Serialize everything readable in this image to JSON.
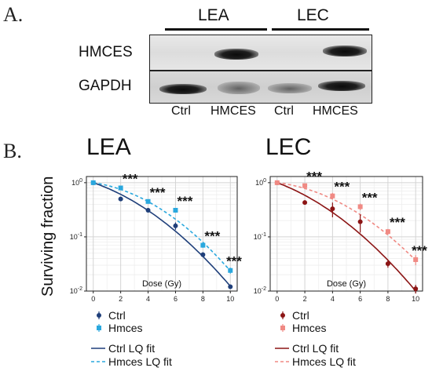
{
  "panel_a": {
    "letter": "A.",
    "groups": [
      "LEA",
      "LEC"
    ],
    "rows": [
      "HMCES",
      "GAPDH"
    ],
    "lanes": [
      "Ctrl",
      "HMCES",
      "Ctrl",
      "HMCES"
    ]
  },
  "panel_b": {
    "letter": "B.",
    "ylabel": "Surviving fraction"
  },
  "chart_data": [
    {
      "type": "scatter",
      "title": "LEA",
      "xlabel": "Dose (Gy)",
      "ylabel": "Surviving fraction",
      "yscale": "log",
      "xlim": [
        -0.5,
        10.5
      ],
      "ylim": [
        0.01,
        1.3
      ],
      "xticks": [
        0,
        2,
        4,
        6,
        8,
        10
      ],
      "yticks": [
        {
          "value": 1,
          "base": "10",
          "exp": "0"
        },
        {
          "value": 0.1,
          "base": "10",
          "exp": "-1"
        },
        {
          "value": 0.01,
          "base": "10",
          "exp": "-2"
        }
      ],
      "grid": true,
      "series": [
        {
          "name": "Ctrl",
          "color": "#1f3f7a",
          "marker": "circle",
          "x": [
            0,
            2,
            4,
            6,
            8,
            10
          ],
          "y": [
            1.0,
            0.5,
            0.31,
            0.16,
            0.047,
            0.012
          ],
          "err": [
            0.02,
            0.03,
            0.03,
            0.025,
            0.005,
            0.001
          ]
        },
        {
          "name": "Hmces",
          "color": "#2aa8de",
          "marker": "square",
          "x": [
            0,
            2,
            4,
            6,
            8,
            10
          ],
          "y": [
            1.0,
            0.8,
            0.45,
            0.31,
            0.07,
            0.024
          ],
          "err": [
            0.03,
            0.04,
            0.04,
            0.02,
            0.007,
            0.003
          ]
        }
      ],
      "fits": [
        {
          "name": "Ctrl LQ fit",
          "color": "#1f3f7a",
          "dash": false,
          "alpha": 0.2,
          "beta": 0.024
        },
        {
          "name": "Hmces LQ fit",
          "color": "#2aa8de",
          "dash": true,
          "alpha": 0.085,
          "beta": 0.029
        }
      ],
      "annotations": [
        {
          "x": 2,
          "y": 0.8,
          "text": "***"
        },
        {
          "x": 4,
          "y": 0.45,
          "text": "***"
        },
        {
          "x": 6,
          "y": 0.31,
          "text": "***"
        },
        {
          "x": 8,
          "y": 0.07,
          "text": "***"
        },
        {
          "x": 10,
          "y": 0.024,
          "text": "***"
        }
      ]
    },
    {
      "type": "scatter",
      "title": "LEC",
      "xlabel": "Dose (Gy)",
      "ylabel": "Surviving fraction",
      "yscale": "log",
      "xlim": [
        -0.5,
        10.5
      ],
      "ylim": [
        0.01,
        1.3
      ],
      "xticks": [
        0,
        2,
        4,
        6,
        8,
        10
      ],
      "yticks": [
        {
          "value": 1,
          "base": "10",
          "exp": "0"
        },
        {
          "value": 0.1,
          "base": "10",
          "exp": "-1"
        },
        {
          "value": 0.01,
          "base": "10",
          "exp": "-2"
        }
      ],
      "grid": true,
      "series": [
        {
          "name": "Ctrl",
          "color": "#8c1515",
          "marker": "circle",
          "x": [
            0,
            2,
            4,
            6,
            8,
            10
          ],
          "y": [
            1.0,
            0.43,
            0.33,
            0.19,
            0.032,
            0.011
          ],
          "err": [
            0.02,
            0.03,
            0.1,
            0.07,
            0.005,
            0.002
          ]
        },
        {
          "name": "Hmces",
          "color": "#f08a84",
          "marker": "square",
          "x": [
            0,
            2,
            4,
            6,
            8,
            10
          ],
          "y": [
            1.0,
            0.88,
            0.57,
            0.36,
            0.125,
            0.038
          ],
          "err": [
            0.03,
            0.04,
            0.08,
            0.05,
            0.015,
            0.008
          ]
        }
      ],
      "fits": [
        {
          "name": "Ctrl LQ fit",
          "color": "#8c1515",
          "dash": false,
          "alpha": 0.22,
          "beta": 0.024
        },
        {
          "name": "Hmces LQ fit",
          "color": "#f08a84",
          "dash": true,
          "alpha": 0.07,
          "beta": 0.026
        }
      ],
      "annotations": [
        {
          "x": 2,
          "y": 0.88,
          "text": "***"
        },
        {
          "x": 4,
          "y": 0.57,
          "text": "***"
        },
        {
          "x": 6,
          "y": 0.36,
          "text": "***"
        },
        {
          "x": 8,
          "y": 0.125,
          "text": "***"
        },
        {
          "x": 10,
          "y": 0.038,
          "text": "***"
        }
      ]
    }
  ]
}
